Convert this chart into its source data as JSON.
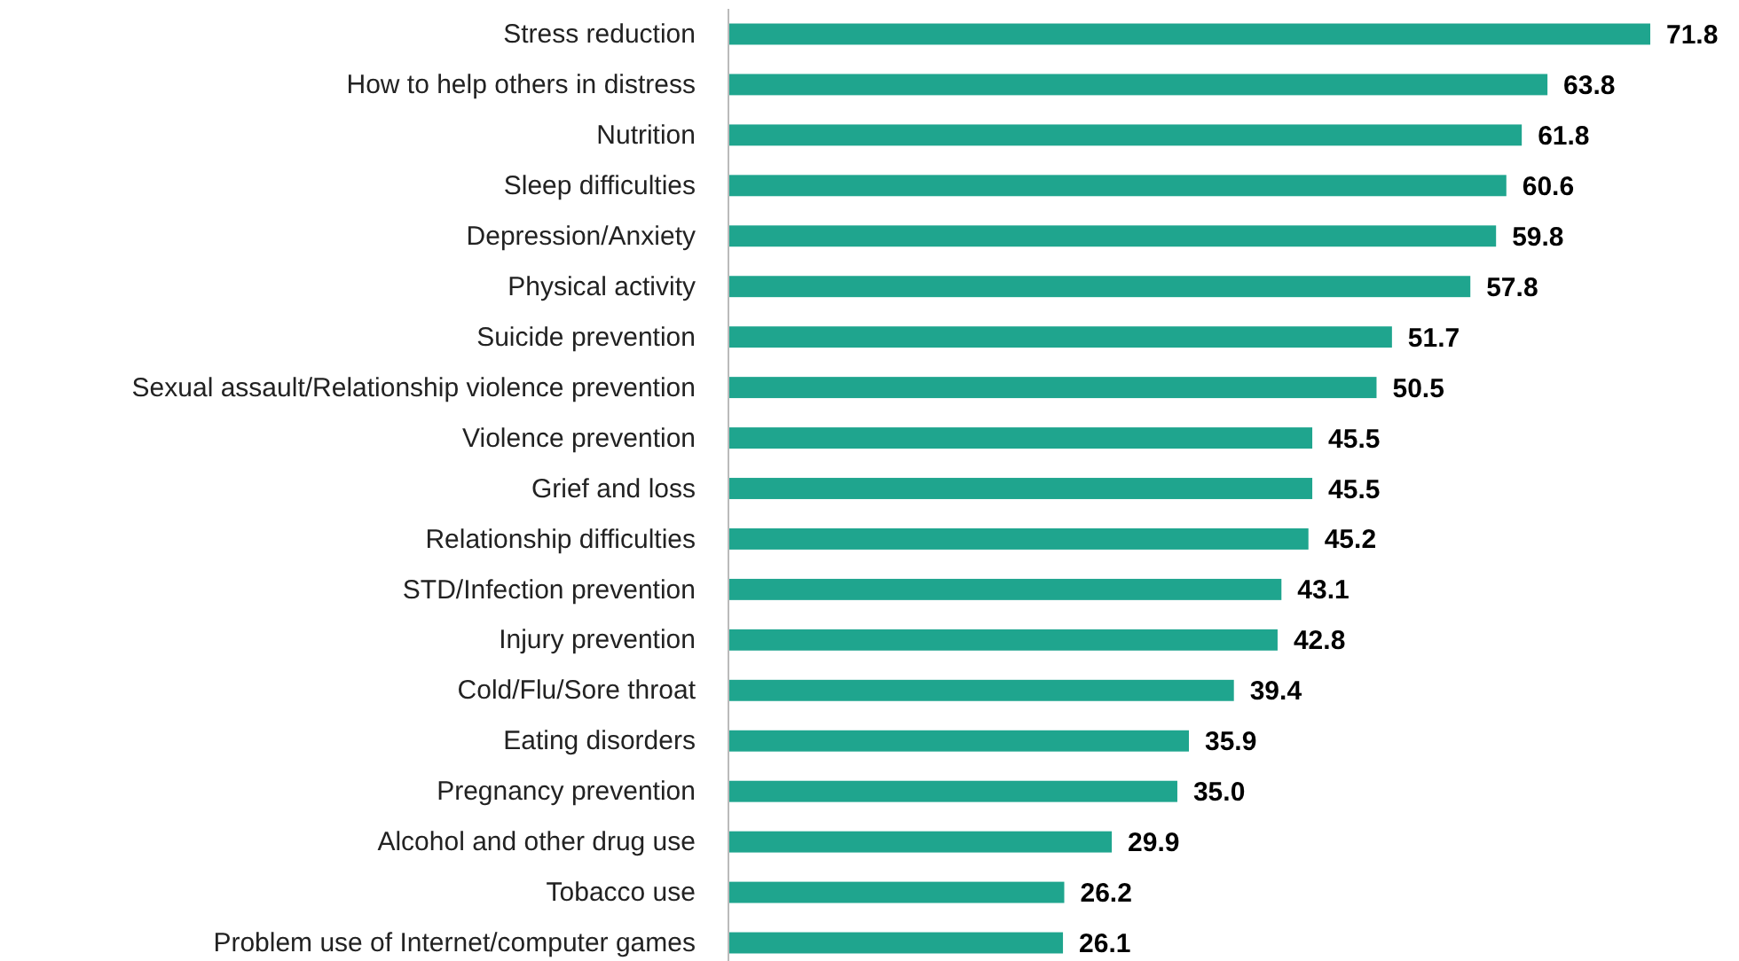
{
  "chart_data": {
    "type": "bar",
    "orientation": "horizontal",
    "value_labels": [
      "71.8",
      "63.8",
      "61.8",
      "60.6",
      "59.8",
      "57.8",
      "51.7",
      "50.5",
      "45.5",
      "45.5",
      "45.2",
      "43.1",
      "42.8",
      "39.4",
      "35.9",
      "35.0",
      "29.9",
      "26.2",
      "26.1"
    ],
    "color": "#1fa58e",
    "categories": [
      "Stress reduction",
      "How to help others in distress",
      "Nutrition",
      "Sleep difficulties",
      "Depression/Anxiety",
      "Physical activity",
      "Suicide prevention",
      "Sexual assault/Relationship violence prevention",
      "Violence prevention",
      "Grief and loss",
      "Relationship difficulties",
      "STD/Infection prevention",
      "Injury prevention",
      "Cold/Flu/Sore throat",
      "Eating disorders",
      "Pregnancy prevention",
      "Alcohol and other drug use",
      "Tobacco use",
      "Problem use of Internet/computer games"
    ],
    "values": [
      71.8,
      63.8,
      61.8,
      60.6,
      59.8,
      57.8,
      51.7,
      50.5,
      45.5,
      45.5,
      45.2,
      43.1,
      42.8,
      39.4,
      35.9,
      35.0,
      29.9,
      26.2,
      26.1
    ]
  }
}
